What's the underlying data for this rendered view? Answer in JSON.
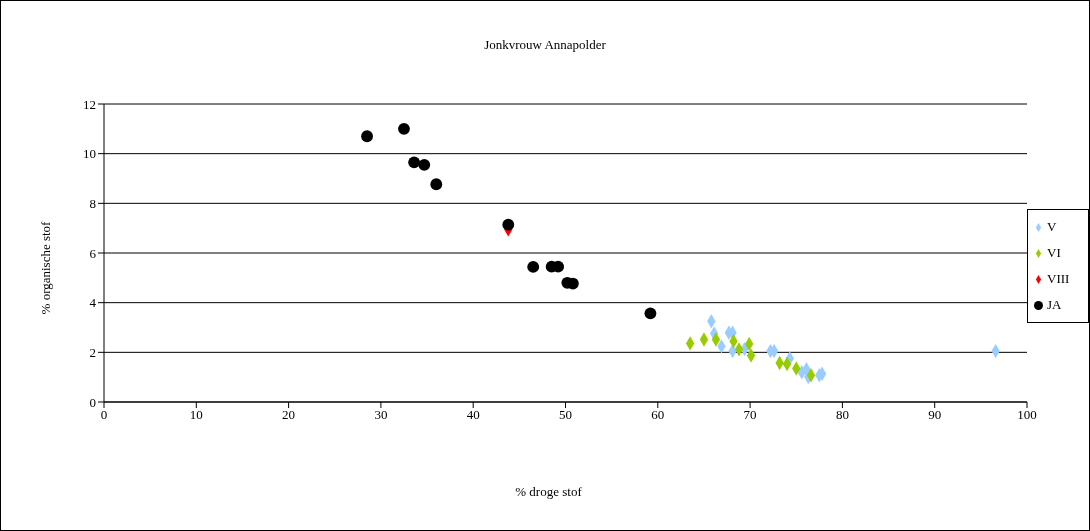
{
  "chart_data": {
    "type": "scatter",
    "title": "Jonkvrouw Annapolder",
    "xlabel": "% droge stof",
    "ylabel": "% organische stof",
    "xlim": [
      0,
      100
    ],
    "xticks": [
      0,
      10,
      20,
      30,
      40,
      50,
      60,
      70,
      80,
      90,
      100
    ],
    "ylim": [
      0,
      12
    ],
    "yticks": [
      0,
      2,
      4,
      6,
      8,
      10,
      12
    ],
    "grid": "y",
    "legend": "right",
    "series": [
      {
        "name": "V",
        "color": "#99ccff",
        "marker": "diamond",
        "x": [
          65.8,
          66.1,
          66.9,
          67.7,
          68.1,
          68.1,
          69.4,
          72.2,
          72.6,
          74.3,
          75.6,
          76.1,
          76.3,
          77.5,
          77.8,
          96.6
        ],
        "values": [
          3.25,
          2.76,
          2.24,
          2.79,
          2.79,
          2.05,
          2.13,
          2.05,
          2.05,
          1.75,
          1.2,
          1.32,
          1.01,
          1.08,
          1.14,
          2.05
        ]
      },
      {
        "name": "VI",
        "color": "#99cc00",
        "marker": "diamond",
        "x": [
          63.5,
          65.0,
          66.3,
          68.2,
          68.8,
          69.9,
          70.1,
          73.2,
          74.0,
          75.0,
          76.6
        ],
        "values": [
          2.36,
          2.52,
          2.52,
          2.45,
          2.12,
          2.34,
          1.87,
          1.57,
          1.53,
          1.35,
          1.08
        ]
      },
      {
        "name": "VIII",
        "color": "#ff0000",
        "marker": "diamond",
        "x": [
          43.8
        ],
        "values": [
          6.95
        ]
      },
      {
        "name": "JA",
        "color": "#000000",
        "marker": "circle",
        "x": [
          28.5,
          32.5,
          33.6,
          34.7,
          36.0,
          43.8,
          46.5,
          48.5,
          49.2,
          50.2,
          50.8,
          59.2
        ],
        "values": [
          10.7,
          11.0,
          9.65,
          9.55,
          8.77,
          7.14,
          5.44,
          5.45,
          5.45,
          4.8,
          4.77,
          3.57
        ]
      }
    ]
  }
}
